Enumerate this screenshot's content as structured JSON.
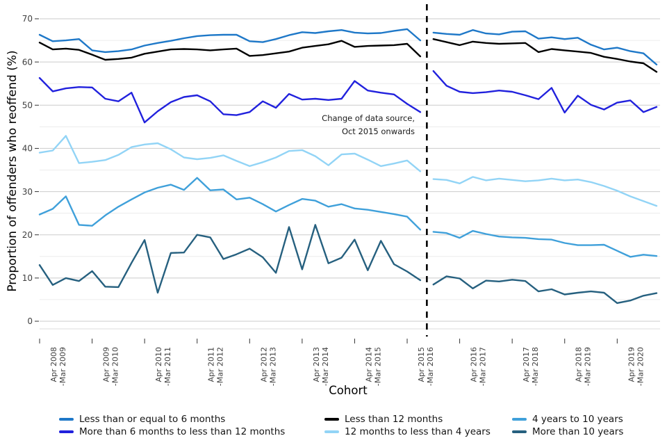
{
  "figure": {
    "ylabel": "Proportion of offenders who reoffend (%)",
    "xlabel": "Cohort",
    "annotation": [
      "Change of data source,",
      "Oct 2015 onwards"
    ]
  },
  "chart_data": {
    "type": "line",
    "title": "",
    "xlabel": "Cohort",
    "ylabel": "Proportion of offenders who reoffend (%)",
    "ylim": [
      0,
      70
    ],
    "yticks": [
      0,
      10,
      20,
      30,
      40,
      50,
      60,
      70
    ],
    "grid": "major-and-minor-horizontal",
    "legend_position": "bottom",
    "n_points": 48,
    "x_unit": "quarterly cohorts Apr 2008 to Jan 2020",
    "x_tick_every": 4,
    "x_tick_labels": [
      [
        "Apr 2008",
        "-Mar 2009"
      ],
      [
        "Apr 2009",
        "-Mar 2010"
      ],
      [
        "Apr 2010",
        "-Mar 2011"
      ],
      [
        "Apr 2011",
        "-Mar 2012"
      ],
      [
        "Apr 2012",
        "-Mar 2013"
      ],
      [
        "Apr 2013",
        "-Mar 2014"
      ],
      [
        "Apr 2014",
        "-Mar 2015"
      ],
      [
        "Apr 2015",
        "-Mar 2016"
      ],
      [
        "Apr 2016",
        "-Mar 2017"
      ],
      [
        "Apr 2017",
        "-Mar 2018"
      ],
      [
        "Apr 2018",
        "-Mar 2019"
      ],
      [
        "Apr 2019",
        "-Mar 2020"
      ]
    ],
    "break_start_index": 30,
    "dashed_vertical_line_between_indices": [
      29,
      30
    ],
    "annotation": [
      "Change of data source,",
      "Oct 2015 onwards"
    ],
    "series": [
      {
        "name": "Less than or equal to 6 months",
        "color": "#1e78c8",
        "values": [
          66.3,
          64.8,
          65.0,
          65.3,
          62.7,
          62.3,
          62.5,
          62.9,
          63.8,
          64.4,
          64.9,
          65.5,
          66.0,
          66.2,
          66.3,
          66.3,
          64.8,
          64.6,
          65.3,
          66.2,
          66.9,
          66.7,
          67.1,
          67.4,
          66.8,
          66.6,
          66.7,
          67.2,
          67.6,
          65.0,
          66.8,
          66.5,
          66.3,
          67.4,
          66.6,
          66.4,
          67.0,
          67.1,
          65.4,
          65.7,
          65.3,
          65.6,
          64.0,
          62.9,
          63.3,
          62.5,
          62.0,
          59.4
        ]
      },
      {
        "name": "More than 6 months to less than 12 months",
        "color": "#2121dd",
        "values": [
          56.3,
          53.2,
          53.9,
          54.2,
          54.1,
          51.5,
          50.9,
          52.9,
          46.0,
          48.6,
          50.7,
          51.9,
          52.3,
          50.9,
          47.9,
          47.7,
          48.4,
          50.9,
          49.4,
          52.6,
          51.3,
          51.5,
          51.2,
          51.5,
          55.6,
          53.4,
          52.9,
          52.5,
          50.3,
          48.4,
          57.9,
          54.5,
          53.1,
          52.8,
          53.0,
          53.4,
          53.1,
          52.3,
          51.4,
          54.0,
          48.3,
          52.2,
          50.1,
          49.0,
          50.6,
          51.1,
          48.4,
          49.6
        ]
      },
      {
        "name": "Less than 12 months",
        "color": "#000000",
        "values": [
          64.5,
          62.9,
          63.1,
          62.8,
          61.7,
          60.5,
          60.7,
          61.0,
          61.9,
          62.4,
          62.9,
          63.0,
          62.9,
          62.7,
          62.9,
          63.1,
          61.4,
          61.6,
          62.0,
          62.4,
          63.3,
          63.7,
          64.1,
          64.9,
          63.5,
          63.7,
          63.8,
          63.9,
          64.2,
          61.3,
          65.3,
          64.6,
          63.9,
          64.7,
          64.4,
          64.2,
          64.3,
          64.4,
          62.3,
          63.0,
          62.7,
          62.4,
          62.1,
          61.2,
          60.7,
          60.1,
          59.7,
          57.7
        ]
      },
      {
        "name": "12 months to less than 4 years",
        "color": "#92d4f6",
        "values": [
          39.0,
          39.5,
          42.9,
          36.6,
          36.9,
          37.3,
          38.5,
          40.3,
          40.9,
          41.2,
          39.8,
          37.9,
          37.5,
          37.8,
          38.4,
          37.1,
          35.9,
          36.8,
          37.9,
          39.4,
          39.6,
          38.2,
          36.1,
          38.6,
          38.8,
          37.4,
          35.9,
          36.5,
          37.2,
          34.7,
          32.9,
          32.7,
          31.9,
          33.4,
          32.6,
          33.0,
          32.7,
          32.4,
          32.6,
          33.0,
          32.6,
          32.8,
          32.2,
          31.3,
          30.2,
          28.9,
          27.8,
          26.7
        ]
      },
      {
        "name": "4 years to 10 years",
        "color": "#3fa0da",
        "values": [
          24.7,
          26.0,
          28.9,
          22.3,
          22.1,
          24.5,
          26.5,
          28.2,
          29.8,
          30.9,
          31.6,
          30.4,
          33.2,
          30.3,
          30.5,
          28.2,
          28.6,
          27.1,
          25.4,
          26.9,
          28.3,
          27.9,
          26.5,
          27.1,
          26.1,
          25.8,
          25.3,
          24.8,
          24.2,
          21.2,
          20.7,
          20.4,
          19.3,
          20.9,
          20.2,
          19.6,
          19.4,
          19.3,
          19.0,
          18.9,
          18.1,
          17.6,
          17.6,
          17.7,
          16.3,
          14.9,
          15.4,
          15.1
        ]
      },
      {
        "name": "More than 10 years",
        "color": "#26607f",
        "values": [
          13.0,
          8.4,
          10.0,
          9.3,
          11.6,
          8.0,
          7.9,
          13.5,
          18.8,
          6.6,
          15.8,
          15.9,
          20.0,
          19.4,
          14.4,
          15.5,
          16.8,
          14.8,
          11.2,
          21.8,
          12.0,
          22.3,
          13.4,
          14.7,
          18.9,
          11.8,
          18.6,
          13.2,
          11.5,
          9.5,
          8.5,
          10.4,
          9.9,
          7.6,
          9.4,
          9.2,
          9.6,
          9.3,
          6.9,
          7.4,
          6.2,
          6.6,
          6.9,
          6.6,
          4.2,
          4.8,
          5.9,
          6.5
        ]
      }
    ]
  }
}
